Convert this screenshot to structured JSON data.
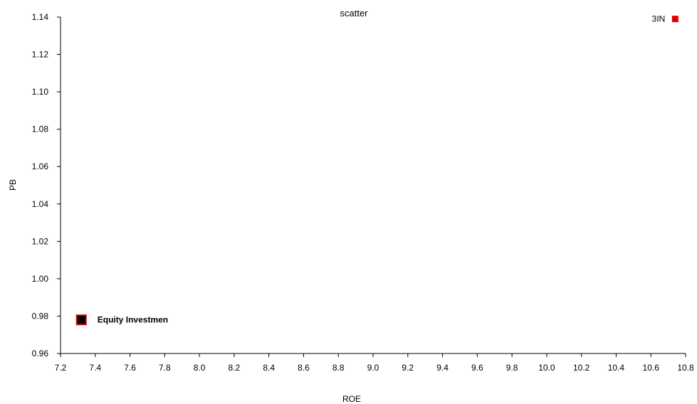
{
  "chart_data": {
    "type": "scatter",
    "title": "scatter",
    "xlabel": "ROE",
    "ylabel": "PB",
    "xlim": [
      7.2,
      10.8
    ],
    "ylim": [
      0.96,
      1.14
    ],
    "xticks": [
      "7.2",
      "7.4",
      "7.6",
      "7.8",
      "8.0",
      "8.2",
      "8.4",
      "8.6",
      "8.8",
      "9.0",
      "9.2",
      "9.4",
      "9.6",
      "9.8",
      "10.0",
      "10.2",
      "10.4",
      "10.6",
      "10.8"
    ],
    "yticks": [
      "0.96",
      "0.98",
      "1.00",
      "1.02",
      "1.04",
      "1.06",
      "1.08",
      "1.10",
      "1.12",
      "1.14"
    ],
    "grid": false,
    "points": [
      {
        "label": "Equity Investmen",
        "x": 7.32,
        "y": 0.978,
        "fill": "#000000",
        "stroke": "#cc0000",
        "label_bold": true,
        "label_side": "right"
      },
      {
        "label": "3IN",
        "x": 10.74,
        "y": 1.139,
        "fill": "#e00000",
        "stroke": "#e00000",
        "label_bold": false,
        "label_side": "left"
      }
    ]
  }
}
